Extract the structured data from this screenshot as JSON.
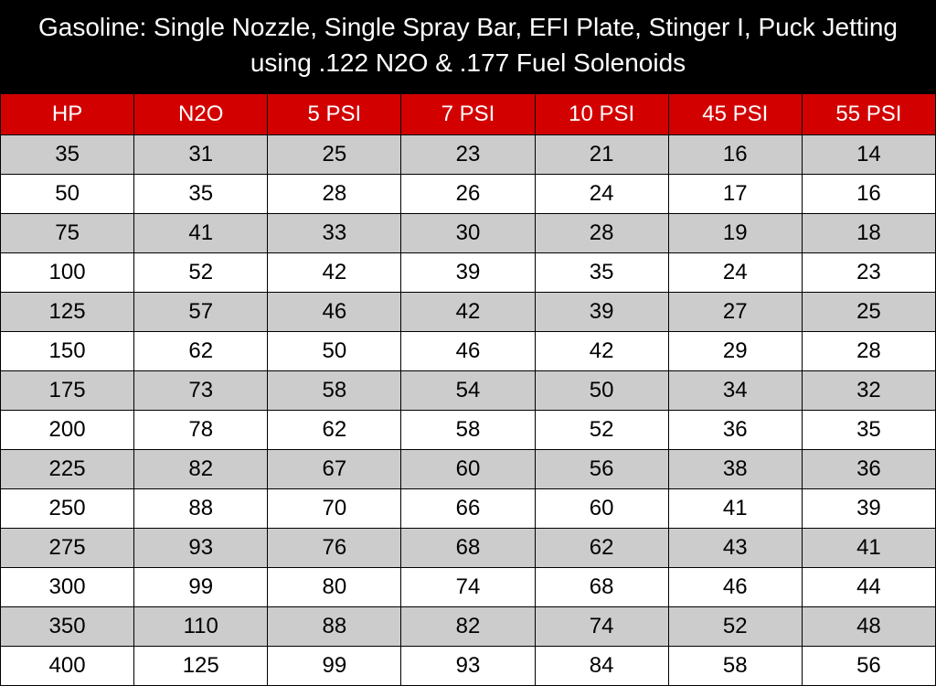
{
  "title": "Gasoline: Single Nozzle, Single Spray Bar, EFI Plate, Stinger I, Puck Jetting using .122 N2O & .177 Fuel Solenoids",
  "table": {
    "type": "table",
    "columns": [
      "HP",
      "N2O",
      "5 PSI",
      "7 PSI",
      "10 PSI",
      "45 PSI",
      "55 PSI"
    ],
    "rows": [
      [
        "35",
        "31",
        "25",
        "23",
        "21",
        "16",
        "14"
      ],
      [
        "50",
        "35",
        "28",
        "26",
        "24",
        "17",
        "16"
      ],
      [
        "75",
        "41",
        "33",
        "30",
        "28",
        "19",
        "18"
      ],
      [
        "100",
        "52",
        "42",
        "39",
        "35",
        "24",
        "23"
      ],
      [
        "125",
        "57",
        "46",
        "42",
        "39",
        "27",
        "25"
      ],
      [
        "150",
        "62",
        "50",
        "46",
        "42",
        "29",
        "28"
      ],
      [
        "175",
        "73",
        "58",
        "54",
        "50",
        "34",
        "32"
      ],
      [
        "200",
        "78",
        "62",
        "58",
        "52",
        "36",
        "35"
      ],
      [
        "225",
        "82",
        "67",
        "60",
        "56",
        "38",
        "36"
      ],
      [
        "250",
        "88",
        "70",
        "66",
        "60",
        "41",
        "39"
      ],
      [
        "275",
        "93",
        "76",
        "68",
        "62",
        "43",
        "41"
      ],
      [
        "300",
        "99",
        "80",
        "74",
        "68",
        "46",
        "44"
      ],
      [
        "350",
        "110",
        "88",
        "82",
        "74",
        "52",
        "48"
      ],
      [
        "400",
        "125",
        "99",
        "93",
        "84",
        "58",
        "56"
      ]
    ],
    "title_background": "#000000",
    "title_color": "#ffffff",
    "title_fontsize": 28,
    "header_background": "#d30000",
    "header_color": "#ffffff",
    "header_fontsize": 24,
    "cell_fontsize": 24,
    "row_odd_background": "#cccccc",
    "row_even_background": "#ffffff",
    "border_color": "#000000",
    "column_count": 7,
    "column_width_pct": 14.2857
  }
}
